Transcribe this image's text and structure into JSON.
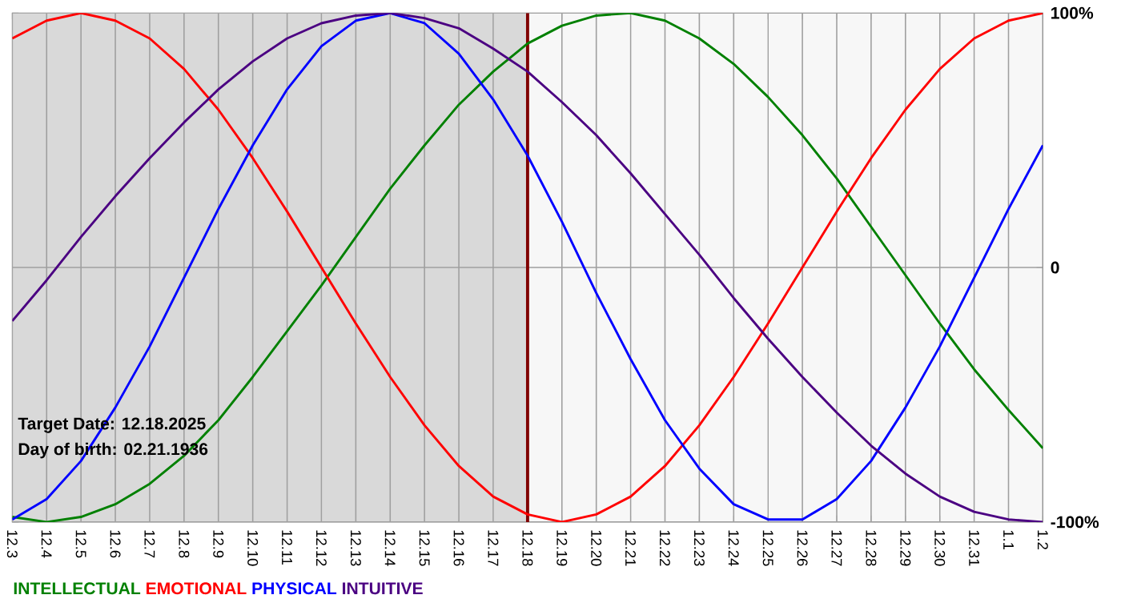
{
  "chart_data": {
    "type": "line",
    "categories": [
      "12.3",
      "12.4",
      "12.5",
      "12.6",
      "12.7",
      "12.8",
      "12.9",
      "12.10",
      "12.11",
      "12.12",
      "12.13",
      "12.14",
      "12.15",
      "12.16",
      "12.17",
      "12.18",
      "12.19",
      "12.20",
      "12.21",
      "12.22",
      "12.23",
      "12.24",
      "12.25",
      "12.26",
      "12.27",
      "12.28",
      "12.29",
      "12.30",
      "12.31",
      "1.1",
      "1.2"
    ],
    "series": [
      {
        "name": "INTELLECTUAL",
        "color": "#008000",
        "values": [
          -98,
          -100,
          -98,
          -93,
          -85,
          -74,
          -60,
          -43,
          -25,
          -7,
          12,
          31,
          48,
          64,
          77,
          88,
          95,
          99,
          100,
          97,
          90,
          80,
          67,
          52,
          35,
          16,
          -3,
          -22,
          -40,
          -56,
          -71
        ]
      },
      {
        "name": "EMOTIONAL",
        "color": "#ff0000",
        "values": [
          90,
          97,
          100,
          97,
          90,
          78,
          62,
          43,
          22,
          0,
          -22,
          -43,
          -62,
          -78,
          -90,
          -97,
          -100,
          -97,
          -90,
          -78,
          -62,
          -43,
          -22,
          0,
          22,
          43,
          62,
          78,
          90,
          97,
          100
        ]
      },
      {
        "name": "PHYSICAL",
        "color": "#0000ff",
        "values": [
          -99,
          -91,
          -76,
          -55,
          -31,
          -4,
          23,
          48,
          70,
          87,
          97,
          100,
          96,
          84,
          66,
          44,
          18,
          -10,
          -36,
          -60,
          -79,
          -93,
          -99,
          -99,
          -91,
          -76,
          -55,
          -31,
          -4,
          23,
          48
        ]
      },
      {
        "name": "INTUITIVE",
        "color": "#4b0082",
        "values": [
          -21,
          -5,
          12,
          28,
          43,
          57,
          70,
          81,
          90,
          96,
          99,
          100,
          98,
          94,
          86,
          77,
          65,
          52,
          37,
          21,
          5,
          -12,
          -28,
          -43,
          -57,
          -70,
          -81,
          -90,
          -96,
          -99,
          -100
        ]
      }
    ],
    "ylim": [
      -100,
      100
    ],
    "yticks": [
      {
        "value": 100,
        "label": "100%"
      },
      0,
      {
        "value": -100,
        "label": "-100%"
      }
    ],
    "grid": true,
    "legend": "bottom",
    "ref_lines": [
      {
        "axis": "x",
        "value": "12.18",
        "color": "#800000"
      }
    ],
    "bands": [
      {
        "axis": "x",
        "from": "12.3",
        "to": "12.18",
        "color": "#d9d9d9"
      }
    ],
    "annotations": [
      "Target Date: 12.18.2025",
      "Day of birth: 02.21.1936"
    ]
  }
}
